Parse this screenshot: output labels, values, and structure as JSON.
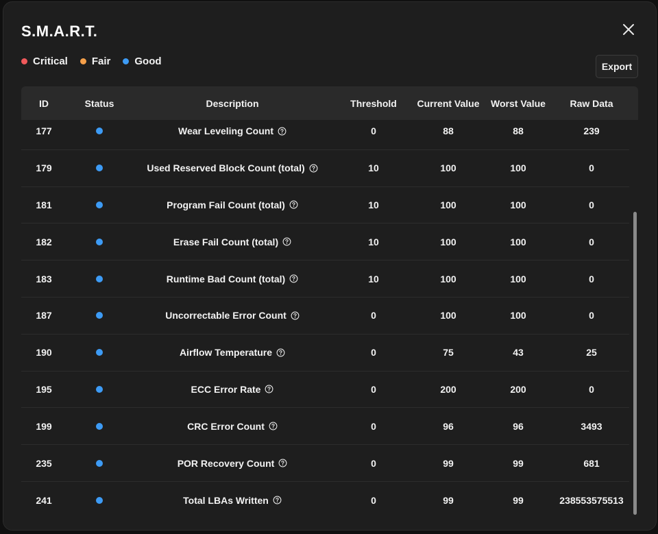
{
  "dialog": {
    "title": "S.M.A.R.T.",
    "export_label": "Export"
  },
  "legend": [
    {
      "label": "Critical",
      "color": "#f0595b"
    },
    {
      "label": "Fair",
      "color": "#f5a04a"
    },
    {
      "label": "Good",
      "color": "#3d9bf5"
    }
  ],
  "table": {
    "headers": [
      "ID",
      "Status",
      "Description",
      "Threshold",
      "Current Value",
      "Worst Value",
      "Raw Data"
    ],
    "rows": [
      {
        "id": "177",
        "status": "good",
        "description": "Wear Leveling Count",
        "threshold": "0",
        "current": "88",
        "worst": "88",
        "raw": "239"
      },
      {
        "id": "179",
        "status": "good",
        "description": "Used Reserved Block Count (total)",
        "threshold": "10",
        "current": "100",
        "worst": "100",
        "raw": "0"
      },
      {
        "id": "181",
        "status": "good",
        "description": "Program Fail Count (total)",
        "threshold": "10",
        "current": "100",
        "worst": "100",
        "raw": "0"
      },
      {
        "id": "182",
        "status": "good",
        "description": "Erase Fail Count (total)",
        "threshold": "10",
        "current": "100",
        "worst": "100",
        "raw": "0"
      },
      {
        "id": "183",
        "status": "good",
        "description": "Runtime Bad Count (total)",
        "threshold": "10",
        "current": "100",
        "worst": "100",
        "raw": "0"
      },
      {
        "id": "187",
        "status": "good",
        "description": "Uncorrectable Error Count",
        "threshold": "0",
        "current": "100",
        "worst": "100",
        "raw": "0"
      },
      {
        "id": "190",
        "status": "good",
        "description": "Airflow Temperature",
        "threshold": "0",
        "current": "75",
        "worst": "43",
        "raw": "25"
      },
      {
        "id": "195",
        "status": "good",
        "description": "ECC Error Rate",
        "threshold": "0",
        "current": "200",
        "worst": "200",
        "raw": "0"
      },
      {
        "id": "199",
        "status": "good",
        "description": "CRC Error Count",
        "threshold": "0",
        "current": "96",
        "worst": "96",
        "raw": "3493"
      },
      {
        "id": "235",
        "status": "good",
        "description": "POR Recovery Count",
        "threshold": "0",
        "current": "99",
        "worst": "99",
        "raw": "681"
      },
      {
        "id": "241",
        "status": "good",
        "description": "Total LBAs Written",
        "threshold": "0",
        "current": "99",
        "worst": "99",
        "raw": "238553575513"
      }
    ]
  }
}
